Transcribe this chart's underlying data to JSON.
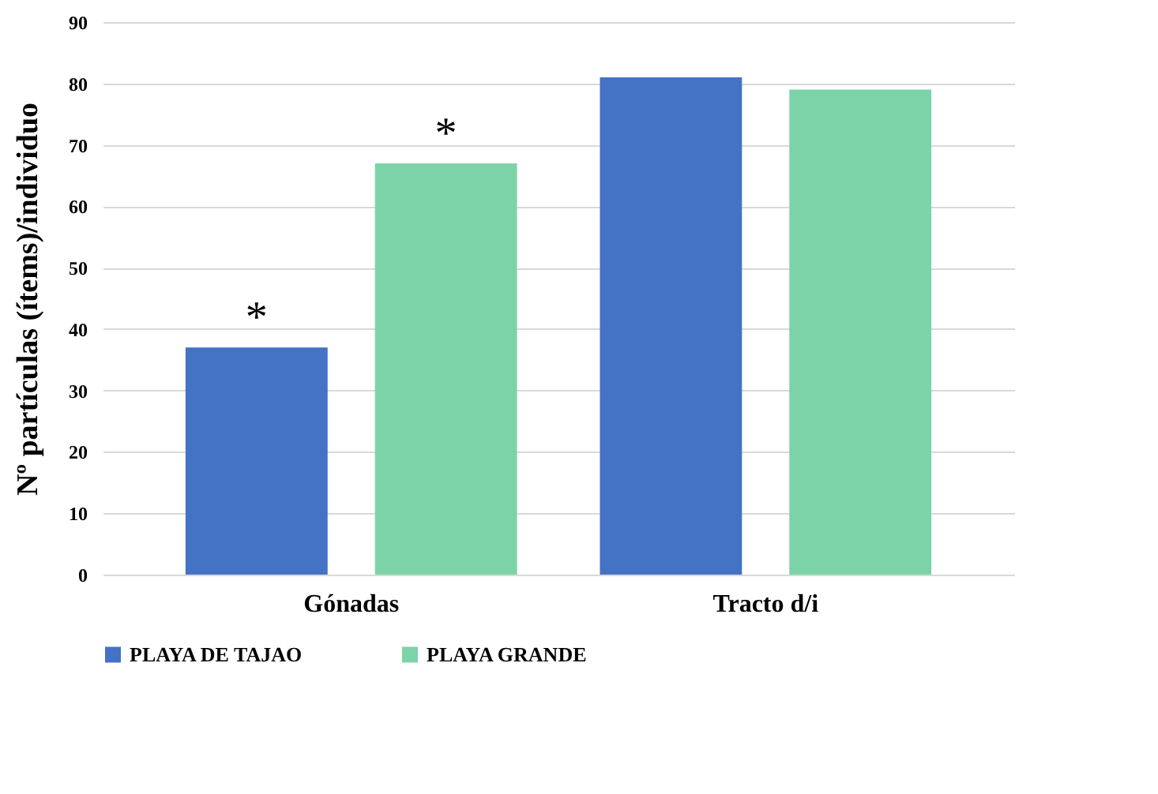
{
  "chart_data": {
    "type": "bar",
    "ylabel": "Nº partículas (ítems)/individuo",
    "categories": [
      "Gónadas",
      "Tracto d/i"
    ],
    "series": [
      {
        "name": "PLAYA DE TAJAO",
        "color": "#4472c4",
        "values": [
          37,
          81
        ]
      },
      {
        "name": "PLAYA GRANDE",
        "color": "#7dd3a8",
        "values": [
          67,
          79
        ]
      }
    ],
    "ylim": [
      0,
      90
    ],
    "yticks": [
      0,
      10,
      20,
      30,
      40,
      50,
      60,
      70,
      80,
      90
    ],
    "grid": "y",
    "legend": "bottom",
    "annotations": [
      "*",
      "*"
    ]
  }
}
